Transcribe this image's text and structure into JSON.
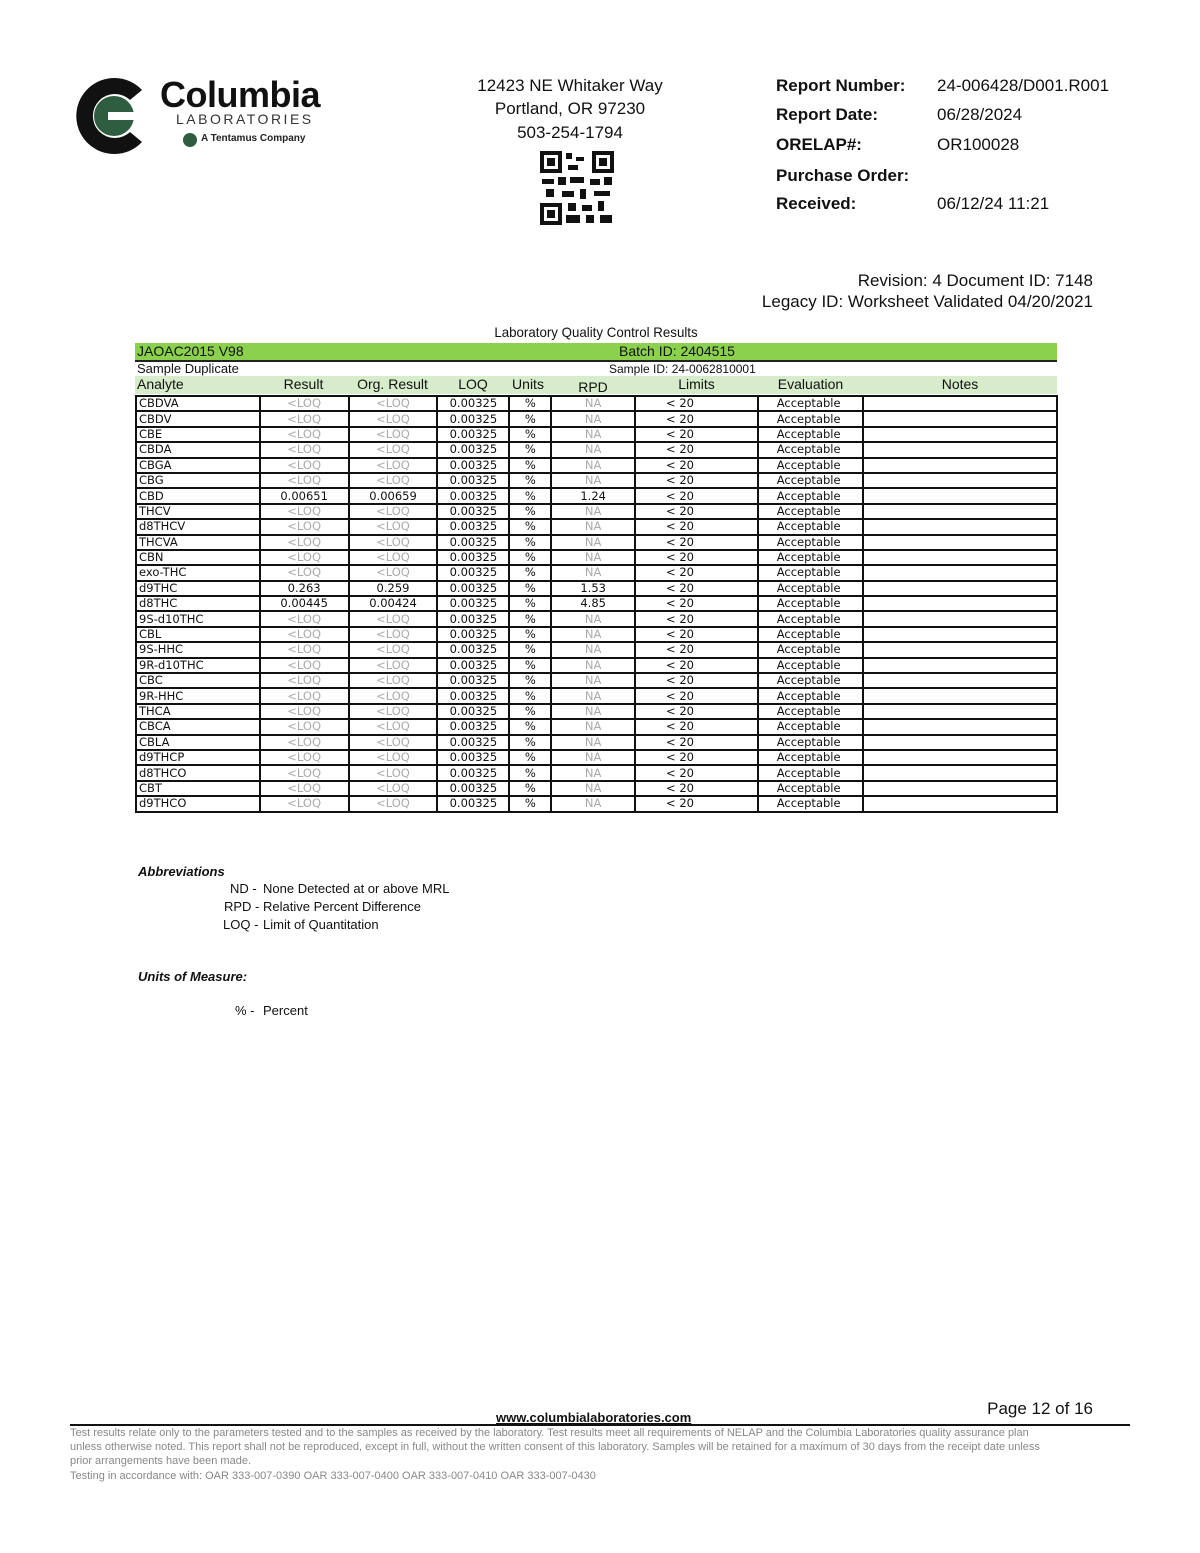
{
  "brand": {
    "name": "Columbia",
    "sub": "LABORATORIES",
    "tagline": "A Tentamus Company",
    "green": "#2f5d3f"
  },
  "address": {
    "street": "12423 NE Whitaker Way",
    "city": "Portland, OR 97230",
    "phone": "503-254-1794"
  },
  "report": {
    "number_label": "Report Number:",
    "number": "24-006428/D001.R001",
    "date_label": "Report Date:",
    "date": "06/28/2024",
    "orelap_label": "ORELAP#:",
    "orelap": "OR100028",
    "po_label": "Purchase Order:",
    "po": "",
    "received_label": "Received:",
    "received": "06/12/24  11:21"
  },
  "revision": {
    "line1": "Revision: 4 Document ID: 7148",
    "line2": "Legacy ID:  Worksheet Validated 04/20/2021"
  },
  "qc": {
    "title": "Laboratory Quality Control Results",
    "method": "JAOAC2015 V98",
    "batch": "Batch ID: 2404515",
    "sample_type": "Sample Duplicate",
    "sample_id": "Sample ID: 24-0062810001",
    "accent": "#8bd14e",
    "columns": [
      "Analyte",
      "Result",
      "Org. Result",
      "LOQ",
      "Units",
      "RPD",
      "Limits",
      "Evaluation",
      "Notes"
    ],
    "rows": [
      [
        "CBDVA",
        "<LOQ",
        "<LOQ",
        "0.00325",
        "%",
        "NA",
        "< 20",
        "Acceptable",
        ""
      ],
      [
        "CBDV",
        "<LOQ",
        "<LOQ",
        "0.00325",
        "%",
        "NA",
        "< 20",
        "Acceptable",
        ""
      ],
      [
        "CBE",
        "<LOQ",
        "<LOQ",
        "0.00325",
        "%",
        "NA",
        "< 20",
        "Acceptable",
        ""
      ],
      [
        "CBDA",
        "<LOQ",
        "<LOQ",
        "0.00325",
        "%",
        "NA",
        "< 20",
        "Acceptable",
        ""
      ],
      [
        "CBGA",
        "<LOQ",
        "<LOQ",
        "0.00325",
        "%",
        "NA",
        "< 20",
        "Acceptable",
        ""
      ],
      [
        "CBG",
        "<LOQ",
        "<LOQ",
        "0.00325",
        "%",
        "NA",
        "< 20",
        "Acceptable",
        ""
      ],
      [
        "CBD",
        "0.00651",
        "0.00659",
        "0.00325",
        "%",
        "1.24",
        "< 20",
        "Acceptable",
        ""
      ],
      [
        "THCV",
        "<LOQ",
        "<LOQ",
        "0.00325",
        "%",
        "NA",
        "< 20",
        "Acceptable",
        ""
      ],
      [
        "d8THCV",
        "<LOQ",
        "<LOQ",
        "0.00325",
        "%",
        "NA",
        "< 20",
        "Acceptable",
        ""
      ],
      [
        "THCVA",
        "<LOQ",
        "<LOQ",
        "0.00325",
        "%",
        "NA",
        "< 20",
        "Acceptable",
        ""
      ],
      [
        "CBN",
        "<LOQ",
        "<LOQ",
        "0.00325",
        "%",
        "NA",
        "< 20",
        "Acceptable",
        ""
      ],
      [
        "exo-THC",
        "<LOQ",
        "<LOQ",
        "0.00325",
        "%",
        "NA",
        "< 20",
        "Acceptable",
        ""
      ],
      [
        "d9THC",
        "0.263",
        "0.259",
        "0.00325",
        "%",
        "1.53",
        "< 20",
        "Acceptable",
        ""
      ],
      [
        "d8THC",
        "0.00445",
        "0.00424",
        "0.00325",
        "%",
        "4.85",
        "< 20",
        "Acceptable",
        ""
      ],
      [
        "9S-d10THC",
        "<LOQ",
        "<LOQ",
        "0.00325",
        "%",
        "NA",
        "< 20",
        "Acceptable",
        ""
      ],
      [
        "CBL",
        "<LOQ",
        "<LOQ",
        "0.00325",
        "%",
        "NA",
        "< 20",
        "Acceptable",
        ""
      ],
      [
        "9S-HHC",
        "<LOQ",
        "<LOQ",
        "0.00325",
        "%",
        "NA",
        "< 20",
        "Acceptable",
        ""
      ],
      [
        "9R-d10THC",
        "<LOQ",
        "<LOQ",
        "0.00325",
        "%",
        "NA",
        "< 20",
        "Acceptable",
        ""
      ],
      [
        "CBC",
        "<LOQ",
        "<LOQ",
        "0.00325",
        "%",
        "NA",
        "< 20",
        "Acceptable",
        ""
      ],
      [
        "9R-HHC",
        "<LOQ",
        "<LOQ",
        "0.00325",
        "%",
        "NA",
        "< 20",
        "Acceptable",
        ""
      ],
      [
        "THCA",
        "<LOQ",
        "<LOQ",
        "0.00325",
        "%",
        "NA",
        "< 20",
        "Acceptable",
        ""
      ],
      [
        "CBCA",
        "<LOQ",
        "<LOQ",
        "0.00325",
        "%",
        "NA",
        "< 20",
        "Acceptable",
        ""
      ],
      [
        "CBLA",
        "<LOQ",
        "<LOQ",
        "0.00325",
        "%",
        "NA",
        "< 20",
        "Acceptable",
        ""
      ],
      [
        "d9THCP",
        "<LOQ",
        "<LOQ",
        "0.00325",
        "%",
        "NA",
        "< 20",
        "Acceptable",
        ""
      ],
      [
        "d8THCO",
        "<LOQ",
        "<LOQ",
        "0.00325",
        "%",
        "NA",
        "< 20",
        "Acceptable",
        ""
      ],
      [
        "CBT",
        "<LOQ",
        "<LOQ",
        "0.00325",
        "%",
        "NA",
        "< 20",
        "Acceptable",
        ""
      ],
      [
        "d9THCO",
        "<LOQ",
        "<LOQ",
        "0.00325",
        "%",
        "NA",
        "< 20",
        "Acceptable",
        ""
      ]
    ]
  },
  "abbreviations": {
    "heading": "Abbreviations",
    "items": [
      {
        "code": "ND -",
        "text": "None Detected at or above MRL"
      },
      {
        "code": "RPD -",
        "text": "Relative Percent Difference"
      },
      {
        "code": "LOQ -",
        "text": "Limit of Quantitation"
      }
    ]
  },
  "units": {
    "heading": "Units of Measure:",
    "items": [
      {
        "code": "% -",
        "text": "Percent"
      }
    ]
  },
  "footer": {
    "page": "Page 12 of 16",
    "url": "www.columbialaboratories.com",
    "disclaimer1": "Test results relate only to the parameters tested and to the samples as received by the laboratory. Test results meet all requirements of NELAP and the Columbia Laboratories quality assurance plan",
    "disclaimer2": "unless otherwise noted. This report shall not be reproduced, except in full, without the written consent of this laboratory. Samples will be retained for a maximum of 30 days from the receipt date unless",
    "disclaimer3": "prior arrangements have been made.",
    "oar": "Testing in accordance with: OAR 333-007-0390 OAR 333-007-0400 OAR 333-007-0410  OAR 333-007-0430"
  }
}
